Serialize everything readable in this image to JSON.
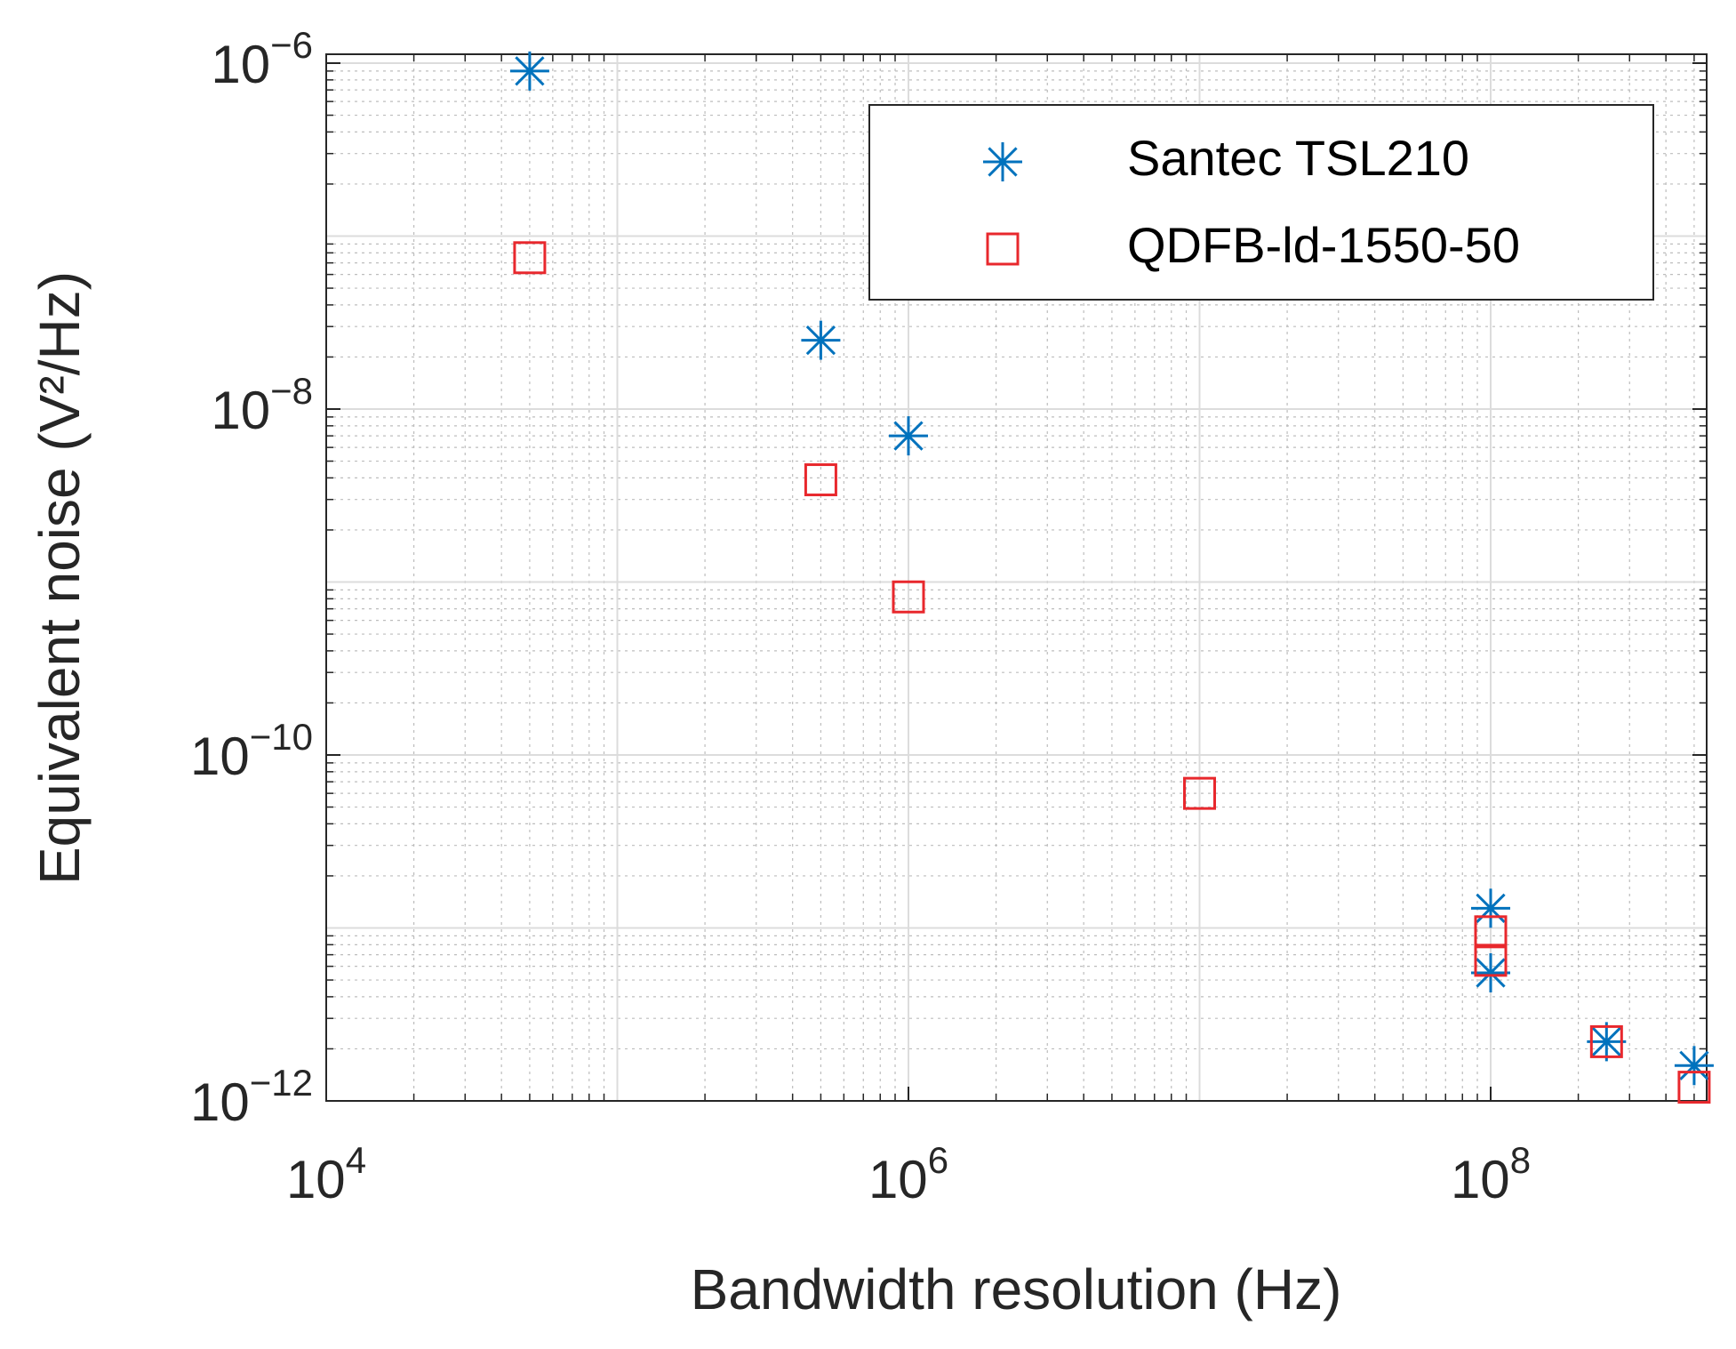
{
  "chart_data": {
    "type": "scatter",
    "xscale": "log",
    "yscale": "log",
    "xlabel": "Bandwidth resolution (Hz)",
    "ylabel": "Equivalent noise (V²/Hz)",
    "xlim": [
      10000,
      500000000
    ],
    "ylim": [
      1e-12,
      1.2e-06
    ],
    "grid": true,
    "legend_position": "top-right",
    "x_ticks": [
      {
        "value": 10000,
        "base": "10",
        "exponent": "4"
      },
      {
        "value": 1000000,
        "base": "10",
        "exponent": "6"
      },
      {
        "value": 100000000,
        "base": "10",
        "exponent": "8"
      }
    ],
    "y_ticks": [
      {
        "value": 1e-06,
        "base": "10",
        "exponent": "−6"
      },
      {
        "value": 1e-08,
        "base": "10",
        "exponent": "−8"
      },
      {
        "value": 1e-10,
        "base": "10",
        "exponent": "−10"
      },
      {
        "value": 1e-12,
        "base": "10",
        "exponent": "−12"
      }
    ],
    "series": [
      {
        "name": "Santec TSL210",
        "marker": "asterisk",
        "color": "#0072BD",
        "x": [
          50000,
          500000,
          1000000,
          100000000,
          100000000,
          250000000,
          500000000
        ],
        "y": [
          9e-07,
          2.5e-08,
          7e-09,
          1.3e-11,
          5.5e-12,
          2.2e-12,
          1.6e-12
        ]
      },
      {
        "name": "QDFB-ld-1550-50",
        "marker": "square",
        "color": "#E8282D",
        "x": [
          50000,
          500000,
          1000000,
          10000000,
          100000000,
          100000000,
          250000000,
          500000000
        ],
        "y": [
          7.5e-08,
          3.9e-09,
          8.2e-10,
          6e-11,
          9.5e-12,
          6.5e-12,
          2.2e-12,
          1.2e-12
        ]
      }
    ]
  }
}
